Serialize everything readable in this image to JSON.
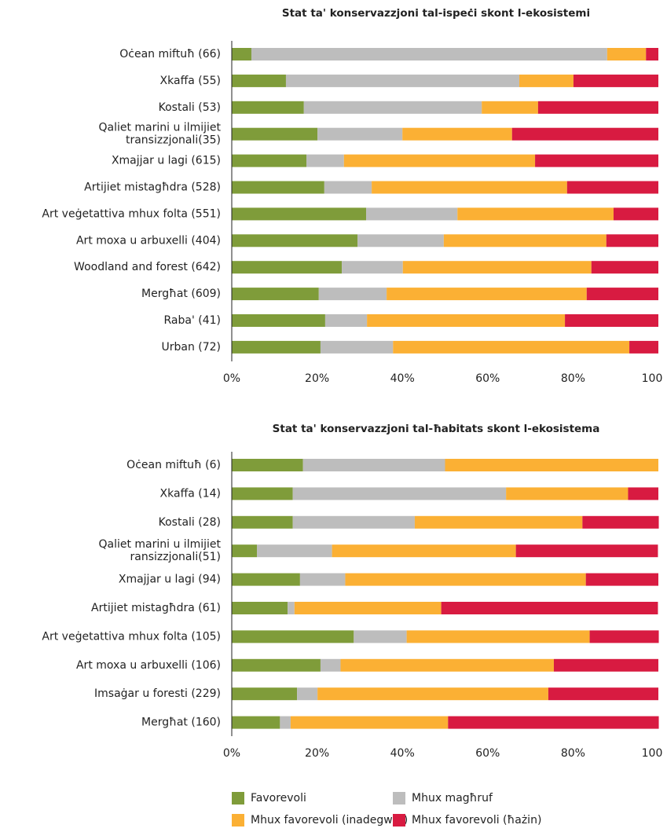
{
  "chart_data": [
    {
      "type": "stacked_barh",
      "title": "Stat ta' konservazzjoni tal-ispeċi skont l-ekosistemi",
      "categories": [
        "Oċean miftuħ (66)",
        "Xkaffa (55)",
        "Kostali (53)",
        "Qaliet marini u ilmijiet transizzjonali(35)",
        "Xmajjar u lagi (615)",
        "Artijiet mistagħdra (528)",
        "Art veġetattiva mhux folta (551)",
        "Art moxa u arbuxelli (404)",
        "Woodland and forest (642)",
        "Mergħat (609)",
        "Raba' (41)",
        "Urban (72)"
      ],
      "series": [
        {
          "name": "Favorevoli",
          "color": "#7f9c3a",
          "values": [
            4.6,
            12.7,
            16.9,
            20.1,
            17.5,
            21.7,
            31.5,
            29.5,
            25.8,
            20.4,
            21.9,
            20.8
          ]
        },
        {
          "name": "Mhux magħruf",
          "color": "#bdbdbd",
          "values": [
            83.4,
            54.7,
            41.7,
            19.9,
            8.8,
            11.1,
            21.4,
            20.2,
            14.3,
            15.9,
            9.8,
            17.0
          ]
        },
        {
          "name": "Mhux favorevoli (inadegwat)",
          "color": "#fbb034",
          "values": [
            9.1,
            12.7,
            13.2,
            25.7,
            44.8,
            45.8,
            36.6,
            38.1,
            44.2,
            46.9,
            46.4,
            55.4
          ]
        },
        {
          "name": "Mhux favorevoli (ħażin)",
          "color": "#d81b41",
          "values": [
            2.9,
            19.9,
            28.2,
            34.3,
            28.9,
            21.4,
            10.5,
            12.2,
            15.7,
            16.8,
            21.9,
            6.8
          ]
        }
      ],
      "xlim": [
        0,
        100
      ],
      "xticks": [
        {
          "value": 0,
          "label": "0%"
        },
        {
          "value": 20,
          "label": "20%"
        },
        {
          "value": 40,
          "label": "40%"
        },
        {
          "value": 60,
          "label": "60%"
        },
        {
          "value": 80,
          "label": "80%"
        },
        100
      ]
    },
    {
      "type": "stacked_barh",
      "title": "Stat ta' konservazzjoni tal-ħabitats skont l-ekosistema",
      "categories": [
        "Oċean miftuħ (6)",
        "Xkaffa (14)",
        "Kostali (28)",
        "Qaliet marini u ilmijiet ransizzjonali(51)",
        "Xmajjar u lagi (94)",
        "Artijiet mistagħdra (61)",
        "Art veġetattiva mhux folta (105)",
        "Art moxa u arbuxelli (106)",
        "Imsaġar u foresti (229)",
        "Mergħat (160)"
      ],
      "series": [
        {
          "name": "Favorevoli",
          "color": "#7f9c3a",
          "values": [
            16.7,
            14.3,
            14.3,
            5.9,
            16.0,
            13.1,
            28.6,
            20.8,
            15.3,
            11.3
          ]
        },
        {
          "name": "Mhux magħruf",
          "color": "#bdbdbd",
          "values": [
            33.3,
            50.0,
            28.6,
            17.6,
            10.6,
            1.6,
            12.4,
            4.7,
            4.8,
            2.5
          ]
        },
        {
          "name": "Mhux favorevoli (inadegwat)",
          "color": "#fbb034",
          "values": [
            50.0,
            28.6,
            39.3,
            43.1,
            56.4,
            34.4,
            42.9,
            50.0,
            54.1,
            36.9
          ]
        },
        {
          "name": "Mhux favorevoli (ħażin)",
          "color": "#d81b41",
          "values": [
            0,
            7.1,
            17.9,
            33.3,
            17.0,
            50.8,
            16.2,
            24.5,
            25.8,
            49.4
          ]
        }
      ],
      "xlim": [
        0,
        100
      ],
      "xticks": [
        {
          "value": 0,
          "label": "0%"
        },
        {
          "value": 20,
          "label": "20%"
        },
        {
          "value": 40,
          "label": "40%"
        },
        {
          "value": 60,
          "label": "60%"
        },
        {
          "value": 80,
          "label": "80%"
        },
        100
      ]
    }
  ]
}
